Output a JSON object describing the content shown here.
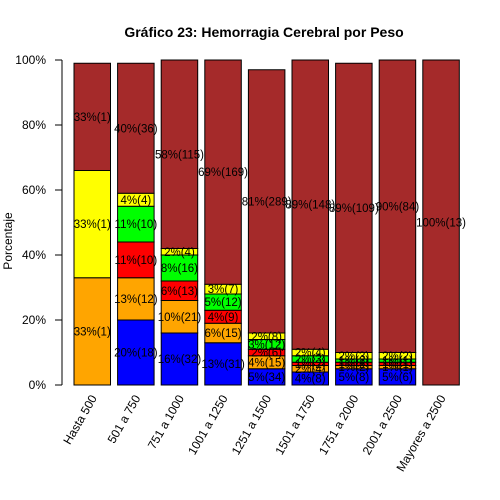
{
  "chart_data": {
    "type": "bar",
    "stacked": true,
    "title": "Gráfico 23: Hemorragia Cerebral por Peso",
    "xlabel": "",
    "ylabel": "Porcentaje",
    "ylim": [
      0,
      100
    ],
    "y_ticks": [
      "0%",
      "20%",
      "40%",
      "60%",
      "80%",
      "100%"
    ],
    "grid": false,
    "categories": [
      "Hasta 500",
      "501 a 750",
      "751 a 1000",
      "1001 a 1250",
      "1251 a 1500",
      "1501 a 1750",
      "1751 a 2000",
      "2001 a 2500",
      "Mayores a 2500"
    ],
    "series": [
      {
        "color": "#0000FF",
        "values": [
          0,
          20,
          16,
          13,
          5,
          4,
          5,
          5,
          0
        ],
        "labels": [
          "",
          "20%(18)",
          "16%(32)",
          "13%(31)",
          "5%(34)",
          "4%(8)",
          "5%(8)",
          "5%(6)",
          ""
        ]
      },
      {
        "color": "#FFA500",
        "values": [
          33,
          13,
          10,
          6,
          4,
          2,
          1,
          1,
          0
        ],
        "labels": [
          "33%(1)",
          "13%(12)",
          "10%(21)",
          "6%(15)",
          "4%(15)",
          "2%(4)",
          "1%(2)",
          "1%(1)",
          ""
        ]
      },
      {
        "color": "#FF0000",
        "values": [
          0,
          11,
          6,
          4,
          2,
          1,
          1,
          1,
          0
        ],
        "labels": [
          "",
          "11%(10)",
          "6%(13)",
          "4%(9)",
          "2%(6)",
          "1%(2)",
          "1%(2)",
          "1%(1)",
          ""
        ]
      },
      {
        "color": "#00FF00",
        "values": [
          0,
          11,
          8,
          5,
          3,
          2,
          1,
          1,
          0
        ],
        "labels": [
          "",
          "11%(10)",
          "8%(16)",
          "5%(12)",
          "3%(12)",
          "2%(3)",
          "1%(2)",
          "1%(1)",
          ""
        ]
      },
      {
        "color": "#FFFF00",
        "values": [
          33,
          4,
          2,
          3,
          2,
          2,
          2,
          2,
          0
        ],
        "labels": [
          "33%(1)",
          "4%(4)",
          "2%(4)",
          "3%(7)",
          "2%(8)",
          "2%(4)",
          "2%(3)",
          "2%(2)",
          ""
        ]
      },
      {
        "color": "#A52A2A",
        "values": [
          33,
          40,
          58,
          69,
          81,
          89,
          89,
          90,
          100
        ],
        "labels": [
          "33%(1)",
          "40%(36)",
          "58%(115)",
          "69%(169)",
          "81%(289)",
          "89%(148)",
          "89%(109)",
          "90%(84)",
          "100%(13)"
        ]
      }
    ]
  }
}
